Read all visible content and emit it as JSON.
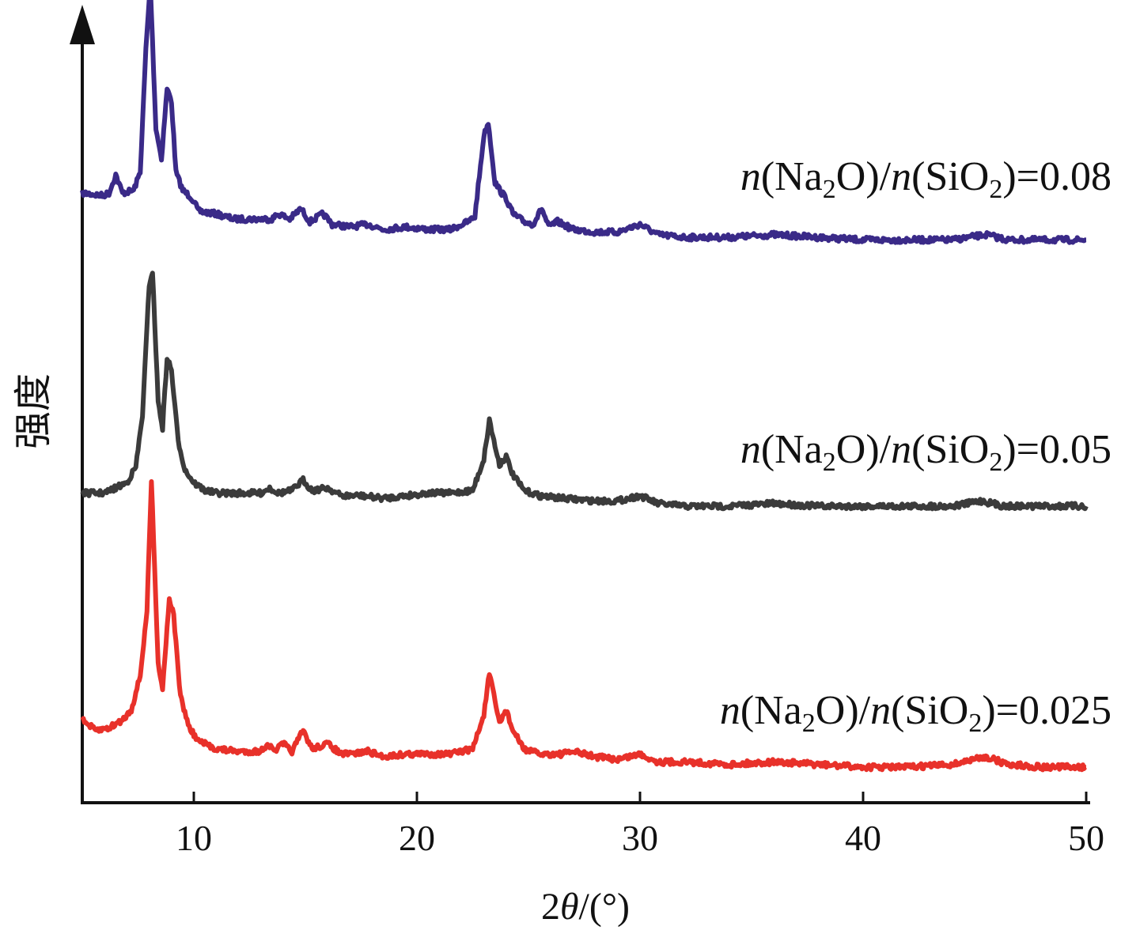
{
  "chart_data": {
    "type": "line",
    "title": "",
    "xlabel": {
      "prefix": "2",
      "italic": "θ",
      "suffix": "/(°)"
    },
    "ylabel": "强度",
    "xlim": [
      5,
      50
    ],
    "x_ticks": [
      10,
      20,
      30,
      40,
      50
    ],
    "y_ticks": [],
    "grid": false,
    "legend": "inline-right",
    "series": [
      {
        "label": {
          "n1": "n",
          "a": "(Na",
          "s1": "2",
          "b": "O)/",
          "n2": "n",
          "c": "(SiO",
          "s2": "2",
          "d": ")=0.08"
        },
        "color": "#3a2a88",
        "offset": 2.0,
        "points": [
          [
            5.0,
            0.2
          ],
          [
            5.9,
            0.19
          ],
          [
            6.2,
            0.2
          ],
          [
            6.5,
            0.27
          ],
          [
            6.8,
            0.2
          ],
          [
            7.3,
            0.21
          ],
          [
            7.6,
            0.28
          ],
          [
            7.85,
            0.75
          ],
          [
            8.05,
            1.0
          ],
          [
            8.3,
            0.45
          ],
          [
            8.55,
            0.33
          ],
          [
            8.8,
            0.6
          ],
          [
            9.0,
            0.55
          ],
          [
            9.2,
            0.28
          ],
          [
            9.5,
            0.21
          ],
          [
            9.8,
            0.19
          ],
          [
            10.0,
            0.17
          ],
          [
            10.2,
            0.13
          ],
          [
            11.0,
            0.12
          ],
          [
            11.8,
            0.1
          ],
          [
            12.5,
            0.1
          ],
          [
            13.5,
            0.1
          ],
          [
            13.8,
            0.12
          ],
          [
            14.3,
            0.1
          ],
          [
            14.8,
            0.14
          ],
          [
            15.2,
            0.09
          ],
          [
            15.8,
            0.12
          ],
          [
            16.2,
            0.08
          ],
          [
            17.0,
            0.07
          ],
          [
            17.8,
            0.08
          ],
          [
            18.5,
            0.06
          ],
          [
            19.5,
            0.07
          ],
          [
            20.5,
            0.06
          ],
          [
            21.5,
            0.06
          ],
          [
            22.3,
            0.09
          ],
          [
            22.6,
            0.11
          ],
          [
            23.0,
            0.42
          ],
          [
            23.2,
            0.47
          ],
          [
            23.5,
            0.24
          ],
          [
            23.8,
            0.2
          ],
          [
            24.0,
            0.18
          ],
          [
            24.3,
            0.12
          ],
          [
            24.8,
            0.09
          ],
          [
            25.2,
            0.08
          ],
          [
            25.6,
            0.14
          ],
          [
            25.9,
            0.07
          ],
          [
            26.3,
            0.09
          ],
          [
            27.0,
            0.06
          ],
          [
            28.0,
            0.05
          ],
          [
            29.0,
            0.05
          ],
          [
            30.0,
            0.08
          ],
          [
            30.8,
            0.04
          ],
          [
            32.0,
            0.03
          ],
          [
            34.0,
            0.03
          ],
          [
            36.0,
            0.04
          ],
          [
            38.0,
            0.03
          ],
          [
            40.0,
            0.02
          ],
          [
            42.0,
            0.02
          ],
          [
            44.0,
            0.02
          ],
          [
            45.5,
            0.04
          ],
          [
            46.5,
            0.02
          ],
          [
            48.0,
            0.02
          ],
          [
            50.0,
            0.02
          ]
        ]
      },
      {
        "label": {
          "n1": "n",
          "a": "(Na",
          "s1": "2",
          "b": "O)/",
          "n2": "n",
          "c": "(SiO",
          "s2": "2",
          "d": ")=0.05"
        },
        "color": "#3b3b3b",
        "offset": 1.0,
        "points": [
          [
            5.0,
            0.05
          ],
          [
            6.0,
            0.05
          ],
          [
            6.5,
            0.07
          ],
          [
            7.0,
            0.09
          ],
          [
            7.4,
            0.15
          ],
          [
            7.7,
            0.35
          ],
          [
            8.0,
            0.85
          ],
          [
            8.15,
            0.9
          ],
          [
            8.4,
            0.4
          ],
          [
            8.6,
            0.3
          ],
          [
            8.8,
            0.57
          ],
          [
            9.0,
            0.52
          ],
          [
            9.3,
            0.25
          ],
          [
            9.6,
            0.14
          ],
          [
            10.0,
            0.09
          ],
          [
            10.5,
            0.06
          ],
          [
            11.0,
            0.05
          ],
          [
            12.0,
            0.05
          ],
          [
            13.0,
            0.05
          ],
          [
            13.4,
            0.07
          ],
          [
            13.8,
            0.05
          ],
          [
            14.4,
            0.06
          ],
          [
            14.9,
            0.1
          ],
          [
            15.3,
            0.06
          ],
          [
            16.0,
            0.07
          ],
          [
            16.6,
            0.04
          ],
          [
            17.5,
            0.04
          ],
          [
            18.5,
            0.03
          ],
          [
            19.5,
            0.04
          ],
          [
            20.5,
            0.05
          ],
          [
            21.5,
            0.05
          ],
          [
            22.5,
            0.06
          ],
          [
            23.0,
            0.18
          ],
          [
            23.25,
            0.33
          ],
          [
            23.5,
            0.23
          ],
          [
            23.7,
            0.16
          ],
          [
            24.0,
            0.19
          ],
          [
            24.3,
            0.12
          ],
          [
            24.8,
            0.06
          ],
          [
            25.5,
            0.04
          ],
          [
            26.5,
            0.03
          ],
          [
            28.0,
            0.02
          ],
          [
            29.0,
            0.02
          ],
          [
            30.0,
            0.04
          ],
          [
            30.8,
            0.01
          ],
          [
            32.0,
            0.0
          ],
          [
            34.0,
            0.0
          ],
          [
            36.0,
            0.01
          ],
          [
            38.0,
            0.0
          ],
          [
            40.0,
            0.0
          ],
          [
            42.0,
            0.0
          ],
          [
            44.0,
            0.0
          ],
          [
            45.3,
            0.02
          ],
          [
            46.3,
            0.0
          ],
          [
            48.0,
            0.0
          ],
          [
            50.0,
            0.0
          ]
        ]
      },
      {
        "label": {
          "n1": "n",
          "a": "(Na",
          "s1": "2",
          "b": "O)/",
          "n2": "n",
          "c": "(SiO",
          "s2": "2",
          "d": ")=0.025"
        },
        "color": "#e8312a",
        "offset": 0.0,
        "points": [
          [
            5.0,
            0.18
          ],
          [
            5.6,
            0.14
          ],
          [
            6.2,
            0.15
          ],
          [
            6.8,
            0.18
          ],
          [
            7.2,
            0.22
          ],
          [
            7.6,
            0.35
          ],
          [
            7.9,
            0.6
          ],
          [
            8.1,
            1.1
          ],
          [
            8.4,
            0.4
          ],
          [
            8.6,
            0.3
          ],
          [
            8.9,
            0.65
          ],
          [
            9.1,
            0.58
          ],
          [
            9.4,
            0.27
          ],
          [
            9.8,
            0.15
          ],
          [
            10.2,
            0.1
          ],
          [
            11.0,
            0.07
          ],
          [
            12.0,
            0.06
          ],
          [
            13.0,
            0.06
          ],
          [
            13.3,
            0.09
          ],
          [
            13.6,
            0.06
          ],
          [
            14.0,
            0.09
          ],
          [
            14.4,
            0.06
          ],
          [
            14.9,
            0.14
          ],
          [
            15.3,
            0.07
          ],
          [
            16.0,
            0.09
          ],
          [
            16.6,
            0.05
          ],
          [
            17.0,
            0.05
          ],
          [
            17.8,
            0.06
          ],
          [
            18.5,
            0.04
          ],
          [
            19.5,
            0.05
          ],
          [
            20.5,
            0.05
          ],
          [
            21.5,
            0.05
          ],
          [
            22.5,
            0.07
          ],
          [
            23.0,
            0.2
          ],
          [
            23.25,
            0.36
          ],
          [
            23.5,
            0.25
          ],
          [
            23.7,
            0.17
          ],
          [
            24.0,
            0.22
          ],
          [
            24.3,
            0.14
          ],
          [
            24.8,
            0.07
          ],
          [
            25.5,
            0.05
          ],
          [
            26.5,
            0.05
          ],
          [
            27.0,
            0.06
          ],
          [
            28.0,
            0.04
          ],
          [
            29.0,
            0.03
          ],
          [
            30.0,
            0.05
          ],
          [
            30.8,
            0.02
          ],
          [
            32.0,
            0.02
          ],
          [
            34.0,
            0.01
          ],
          [
            36.0,
            0.02
          ],
          [
            38.0,
            0.01
          ],
          [
            40.0,
            0.0
          ],
          [
            42.0,
            0.0
          ],
          [
            44.0,
            0.01
          ],
          [
            45.5,
            0.04
          ],
          [
            46.5,
            0.01
          ],
          [
            48.0,
            0.0
          ],
          [
            50.0,
            0.0
          ]
        ]
      }
    ]
  }
}
